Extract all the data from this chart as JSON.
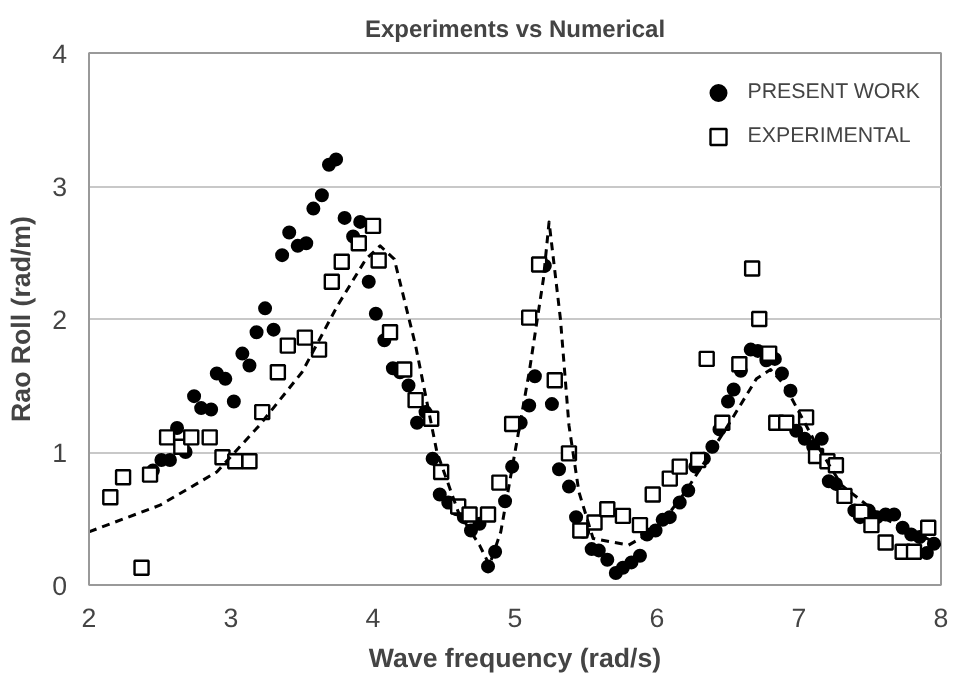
{
  "chart_data": {
    "type": "scatter",
    "title": "Experiments vs Numerical",
    "xlabel": "Wave frequency (rad/s)",
    "ylabel": "Rao Roll (rad/m)",
    "xlim": [
      2,
      8
    ],
    "ylim": [
      0,
      4
    ],
    "xticks": [
      2,
      3,
      4,
      5,
      6,
      7,
      8
    ],
    "yticks": [
      0,
      1,
      2,
      3,
      4
    ],
    "grid": "y",
    "legend": "top right",
    "series": [
      {
        "name": "PRESENT WORK",
        "marker": "circle",
        "color": "#000000",
        "x": [
          2.45,
          2.51,
          2.57,
          2.62,
          2.68,
          2.74,
          2.79,
          2.86,
          2.9,
          2.96,
          3.02,
          3.08,
          3.13,
          3.18,
          3.24,
          3.3,
          3.36,
          3.41,
          3.47,
          3.53,
          3.58,
          3.64,
          3.69,
          3.74,
          3.8,
          3.86,
          3.91,
          3.97,
          4.02,
          4.08,
          4.14,
          4.19,
          4.25,
          4.31,
          4.37,
          4.42,
          4.47,
          4.53,
          4.59,
          4.64,
          4.69,
          4.75,
          4.81,
          4.86,
          4.93,
          4.98,
          5.04,
          5.1,
          5.14,
          5.21,
          5.26,
          5.31,
          5.38,
          5.43,
          5.48,
          5.54,
          5.59,
          5.65,
          5.71,
          5.76,
          5.82,
          5.88,
          5.93,
          5.99,
          6.04,
          6.09,
          6.16,
          6.22,
          6.27,
          6.33,
          6.39,
          6.44,
          6.5,
          6.54,
          6.59,
          6.66,
          6.71,
          6.77,
          6.83,
          6.88,
          6.94,
          6.98,
          7.04,
          7.1,
          7.16,
          7.21,
          7.26,
          7.39,
          7.43,
          7.49,
          7.55,
          7.61,
          7.67,
          7.73,
          7.79,
          7.85,
          7.9,
          7.95
        ],
        "values": [
          0.86,
          0.94,
          0.94,
          1.18,
          1.0,
          1.42,
          1.33,
          1.32,
          1.59,
          1.55,
          1.38,
          1.74,
          1.65,
          1.9,
          2.08,
          1.92,
          2.48,
          2.65,
          2.55,
          2.57,
          2.83,
          2.93,
          3.16,
          3.2,
          2.76,
          2.62,
          2.73,
          2.28,
          2.04,
          1.84,
          1.63,
          1.6,
          1.5,
          1.22,
          1.3,
          0.95,
          0.68,
          0.62,
          0.57,
          0.51,
          0.41,
          0.46,
          0.14,
          0.25,
          0.63,
          0.89,
          1.22,
          1.35,
          1.57,
          2.4,
          1.36,
          0.87,
          0.74,
          0.51,
          0.4,
          0.27,
          0.26,
          0.19,
          0.09,
          0.13,
          0.17,
          0.22,
          0.38,
          0.41,
          0.49,
          0.51,
          0.62,
          0.71,
          0.89,
          0.95,
          1.04,
          1.17,
          1.38,
          1.47,
          1.61,
          1.77,
          1.76,
          1.69,
          1.7,
          1.59,
          1.46,
          1.16,
          1.1,
          1.04,
          1.1,
          0.78,
          0.76,
          0.56,
          0.51,
          0.56,
          0.51,
          0.53,
          0.53,
          0.43,
          0.38,
          0.36,
          0.24,
          0.31
        ]
      },
      {
        "name": "EXPERIMENTAL",
        "marker": "square",
        "color": "#000000",
        "x": [
          2.15,
          2.24,
          2.37,
          2.43,
          2.55,
          2.65,
          2.72,
          2.85,
          2.94,
          3.03,
          3.13,
          3.22,
          3.33,
          3.4,
          3.52,
          3.62,
          3.71,
          3.78,
          3.9,
          4.0,
          4.04,
          4.12,
          4.22,
          4.3,
          4.41,
          4.48,
          4.6,
          4.68,
          4.81,
          4.89,
          4.98,
          5.1,
          5.17,
          5.28,
          5.38,
          5.46,
          5.56,
          5.65,
          5.76,
          5.88,
          5.97,
          6.09,
          6.16,
          6.29,
          6.35,
          6.46,
          6.58,
          6.67,
          6.72,
          6.79,
          6.84,
          6.91,
          7.05,
          7.12,
          7.2,
          7.26,
          7.32,
          7.44,
          7.51,
          7.61,
          7.73,
          7.81,
          7.91
        ],
        "values": [
          0.66,
          0.81,
          0.13,
          0.83,
          1.11,
          1.04,
          1.11,
          1.11,
          0.96,
          0.93,
          0.93,
          1.3,
          1.6,
          1.8,
          1.86,
          1.77,
          2.28,
          2.43,
          2.57,
          2.7,
          2.44,
          1.9,
          1.62,
          1.39,
          1.25,
          0.85,
          0.59,
          0.53,
          0.53,
          0.77,
          1.21,
          2.01,
          2.41,
          1.54,
          0.99,
          0.41,
          0.47,
          0.57,
          0.52,
          0.45,
          0.68,
          0.8,
          0.89,
          0.94,
          1.7,
          1.22,
          1.66,
          2.38,
          2.0,
          1.74,
          1.22,
          1.22,
          1.26,
          0.97,
          0.93,
          0.9,
          0.67,
          0.55,
          0.45,
          0.32,
          0.25,
          0.25,
          0.43
        ]
      },
      {
        "type": "line",
        "line_style": "dashed",
        "color": "#000000",
        "x": [
          2.0,
          2.5,
          2.9,
          3.2,
          3.5,
          3.75,
          3.95,
          4.05,
          4.15,
          4.3,
          4.45,
          4.6,
          4.75,
          4.82,
          4.9,
          5.0,
          5.1,
          5.2,
          5.24,
          5.32,
          5.38,
          5.45,
          5.55,
          5.8,
          6.0,
          6.2,
          6.5,
          6.7,
          6.8,
          6.9,
          7.1,
          7.3,
          7.6,
          8.0
        ],
        "values": [
          0.4,
          0.6,
          0.85,
          1.2,
          1.6,
          2.1,
          2.45,
          2.55,
          2.45,
          1.8,
          1.0,
          0.55,
          0.3,
          0.15,
          0.4,
          1.0,
          1.6,
          2.3,
          2.73,
          2.0,
          1.2,
          0.7,
          0.35,
          0.3,
          0.42,
          0.7,
          1.2,
          1.55,
          1.62,
          1.5,
          1.1,
          0.75,
          0.5,
          0.3
        ]
      }
    ]
  }
}
